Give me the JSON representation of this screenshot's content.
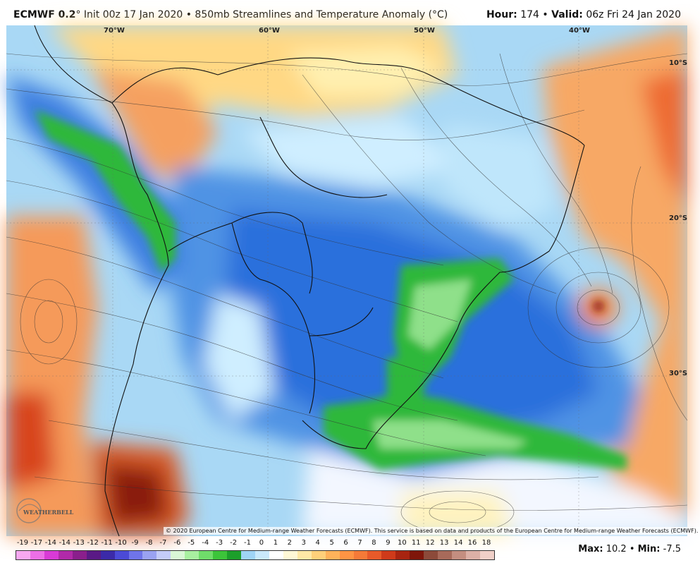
{
  "header": {
    "model": "ECMWF 0.2",
    "init": "° Init 00z 17 Jan 2020 • 850mb Streamlines and Temperature Anomaly (°C)",
    "hour_label": "Hour:",
    "hour": "174",
    "valid_label": "Valid:",
    "valid": "06z Fri 24 Jan 2020"
  },
  "map": {
    "lon_labels": [
      "70°W",
      "60°W",
      "50°W",
      "40°W"
    ],
    "lat_labels": [
      "10°S",
      "20°S",
      "30°S"
    ],
    "copyright": "© 2020 European Centre for Medium-range Weather Forecasts (ECMWF). This service is based on data and products of the European Centre for Medium-range Weather Forecasts (ECMWF).",
    "logo_text": "WEATHERBELL"
  },
  "legend": {
    "ticks": [
      "-19",
      "-17",
      "-14",
      "-14",
      "-13",
      "-12",
      "-11",
      "-10",
      "-9",
      "-8",
      "-7",
      "-6",
      "-5",
      "-4",
      "-3",
      "-2",
      "-1",
      "0",
      "1",
      "2",
      "3",
      "4",
      "5",
      "6",
      "7",
      "8",
      "9",
      "10",
      "11",
      "12",
      "13",
      "14",
      "16",
      "18"
    ],
    "colors": [
      "#f7a8f0",
      "#ec6fe6",
      "#d93ad6",
      "#b12aa9",
      "#8a1f8c",
      "#5a1a86",
      "#3b2aa8",
      "#4b4ad6",
      "#6f74ea",
      "#9aa2f2",
      "#c4cbf8",
      "#d9f7d6",
      "#a8f0a0",
      "#6fdd6a",
      "#3cc43a",
      "#1c9f2b",
      "#9fd4f5",
      "#c9e9fb",
      "#ffffff",
      "#fff8d6",
      "#ffe8a6",
      "#ffd07a",
      "#ffb25a",
      "#ff9444",
      "#f57a38",
      "#e85a2a",
      "#cf3a1a",
      "#a82410",
      "#7f160a",
      "#8c4a3a",
      "#a86a5a",
      "#c48e80",
      "#dcb0a6",
      "#f0d0c8"
    ]
  },
  "stats": {
    "max_label": "Max:",
    "max": "10.2",
    "min_label": "Min:",
    "min": "-7.5"
  }
}
